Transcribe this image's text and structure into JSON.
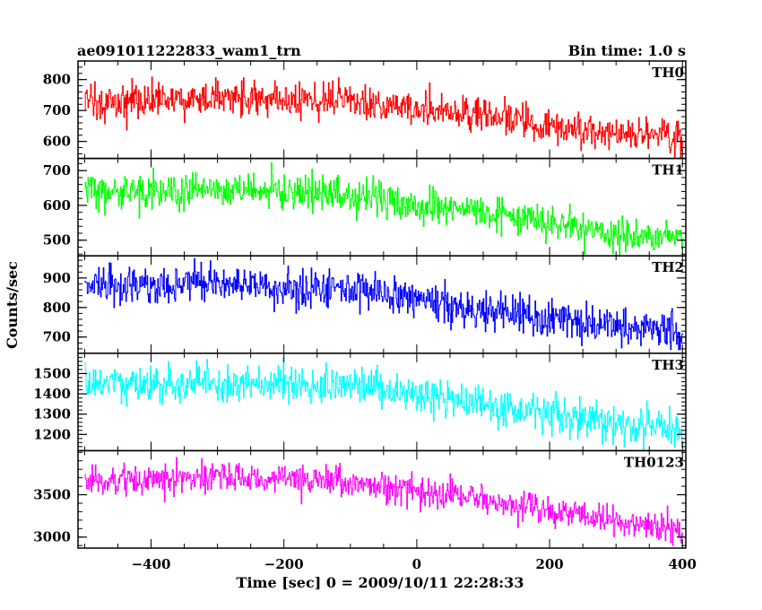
{
  "chart_data": {
    "type": "line",
    "title": "ae091011222833_wam1_trn",
    "bin_time_label": "Bin time: 1.0 s",
    "xlabel": "Time [sec] 0 = 2009/10/11 22:28:33",
    "ylabel": "Counts/sec",
    "xlim": [
      -510,
      405
    ],
    "x_ticks": [
      -400,
      -200,
      0,
      200,
      400
    ],
    "x_tick_labels": [
      "−400",
      "−200",
      "0",
      "200",
      "400"
    ],
    "x_step": 1.0,
    "x_start": -500,
    "x_end": 400,
    "grid": false,
    "panels": [
      {
        "name": "TH0",
        "color": "#ff0000",
        "ylim": [
          545,
          860
        ],
        "yticks": [
          600,
          700,
          800
        ],
        "ytick_labels": [
          "600",
          "700",
          "800"
        ],
        "trend_x": [
          -500,
          -300,
          -100,
          0,
          100,
          200,
          300,
          400
        ],
        "trend_y": [
          725,
          740,
          730,
          705,
          680,
          650,
          625,
          610
        ],
        "noise": 27
      },
      {
        "name": "TH1",
        "color": "#00ff00",
        "ylim": [
          455,
          735
        ],
        "yticks": [
          500,
          600,
          700
        ],
        "ytick_labels": [
          "500",
          "600",
          "700"
        ],
        "trend_x": [
          -500,
          -300,
          -100,
          0,
          100,
          200,
          300,
          400
        ],
        "trend_y": [
          640,
          645,
          625,
          605,
          580,
          550,
          520,
          505
        ],
        "noise": 25
      },
      {
        "name": "TH2",
        "color": "#0000ff",
        "ylim": [
          645,
          975
        ],
        "yticks": [
          700,
          800,
          900
        ],
        "ytick_labels": [
          "700",
          "800",
          "900"
        ],
        "trend_x": [
          -500,
          -300,
          -100,
          0,
          100,
          200,
          300,
          400
        ],
        "trend_y": [
          875,
          880,
          860,
          825,
          790,
          765,
          735,
          715
        ],
        "noise": 32
      },
      {
        "name": "TH3",
        "color": "#00ffff",
        "ylim": [
          1120,
          1600
        ],
        "yticks": [
          1200,
          1300,
          1400,
          1500
        ],
        "ytick_labels": [
          "1200",
          "1300",
          "1400",
          "1500"
        ],
        "trend_x": [
          -500,
          -300,
          -100,
          0,
          100,
          200,
          300,
          400
        ],
        "trend_y": [
          1440,
          1460,
          1440,
          1400,
          1350,
          1300,
          1260,
          1220
        ],
        "noise": 42
      },
      {
        "name": "TH0123",
        "color": "#ff00ff",
        "ylim": [
          2870,
          4020
        ],
        "yticks": [
          3000,
          3500
        ],
        "ytick_labels": [
          "3000",
          "3500"
        ],
        "trend_x": [
          -500,
          -300,
          -100,
          0,
          100,
          200,
          300,
          400
        ],
        "trend_y": [
          3650,
          3720,
          3650,
          3560,
          3440,
          3300,
          3180,
          3080
        ],
        "noise": 85
      }
    ]
  }
}
